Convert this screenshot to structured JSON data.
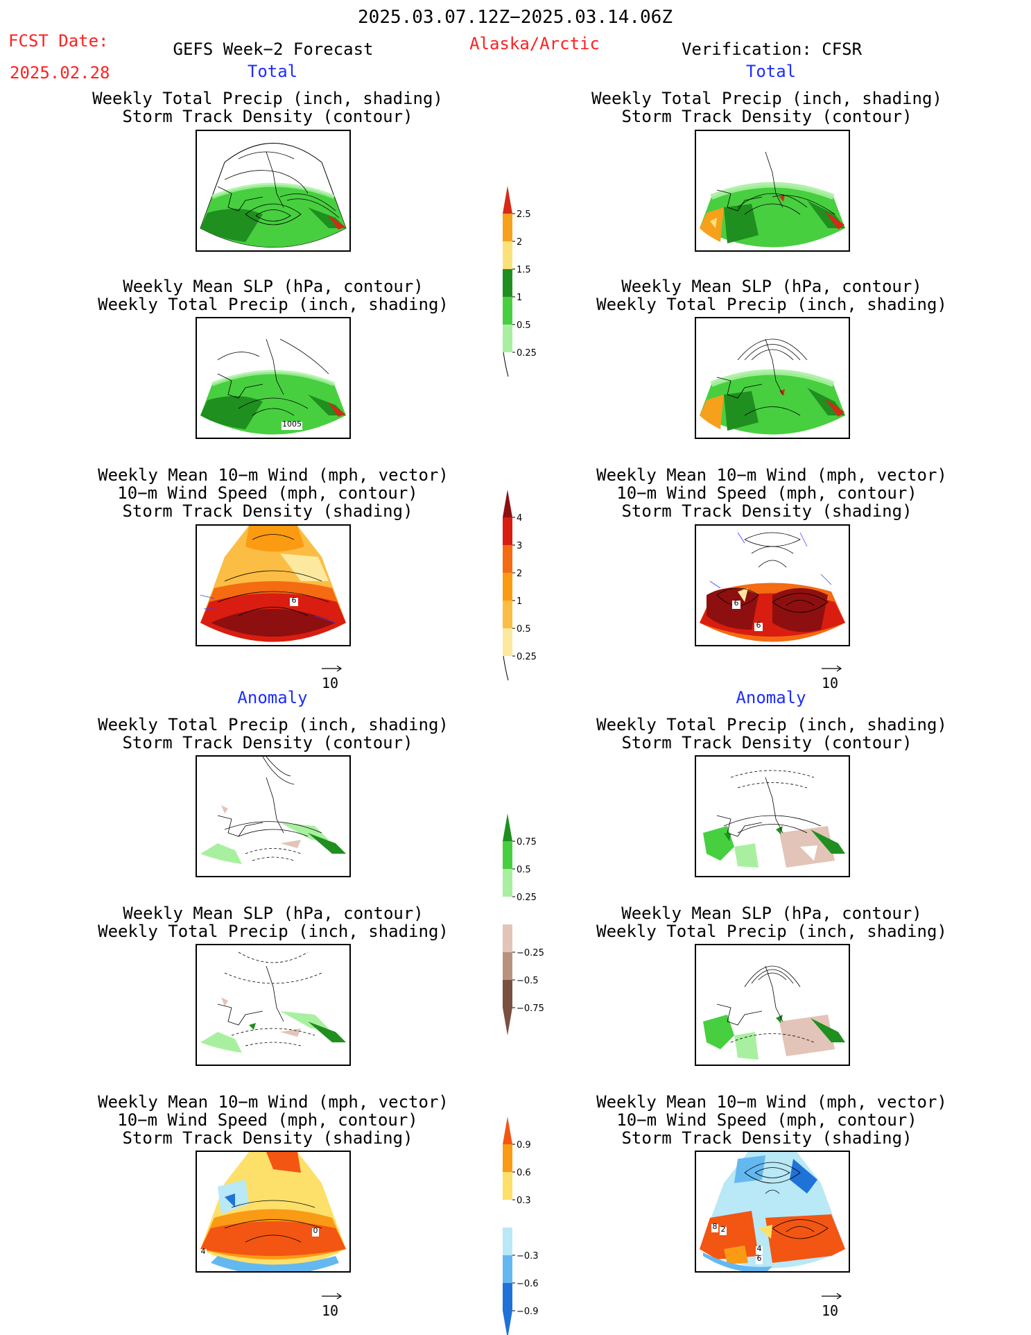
{
  "header": {
    "date_range": "2025.03.07.12Z−2025.03.14.06Z",
    "fcst_label": "FCST Date:",
    "fcst_date": "2025.02.28",
    "forecast_title": "GEFS Week−2 Forecast",
    "region": "Alaska/Arctic",
    "verification": "Verification: CFSR"
  },
  "sections": {
    "total": "Total",
    "anomaly": "Anomaly"
  },
  "titles": {
    "precip_track": [
      "Weekly Total Precip (inch, shading)",
      "Storm Track Density (contour)"
    ],
    "slp_precip": [
      "Weekly Mean SLP (hPa, contour)",
      "Weekly Total Precip (inch, shading)"
    ],
    "wind_track": [
      "Weekly Mean 10−m Wind (mph, vector)",
      "10−m Wind Speed (mph, contour)",
      "Storm Track Density (shading)"
    ]
  },
  "panel_labels": {
    "slp_total_left": "1005",
    "wind_total_left": "6",
    "wind_total_right_a": "6",
    "wind_total_right_b": "6",
    "wind_anom_left_a": "0",
    "wind_anom_left_b": "4",
    "wind_anom_right_a": "8",
    "wind_anom_right_b": "2",
    "wind_anom_right_c": "4",
    "wind_anom_right_d": "6"
  },
  "vector_reference": "10",
  "colorbars": {
    "precip_total": {
      "ticks": [
        "2.5",
        "2",
        "1.5",
        "1",
        "0.5",
        "0.25"
      ],
      "colors": [
        "#d42a16",
        "#f7a01b",
        "#fbe17a",
        "#1f8f1f",
        "#47cf3f",
        "#a8f0a0"
      ]
    },
    "track_total": {
      "ticks": [
        "4",
        "3",
        "2",
        "1",
        "0.5",
        "0.25"
      ],
      "colors": [
        "#8e0f0f",
        "#d91d10",
        "#f46b12",
        "#fb9b12",
        "#fbbd43",
        "#fde8a0"
      ]
    },
    "precip_anom": {
      "ticks": [
        "0.75",
        "0.5",
        "0.25",
        "−0.25",
        "−0.5",
        "−0.75"
      ],
      "colors": [
        "#1f8f1f",
        "#47cf3f",
        "#a8f0a0",
        "#ffffff",
        "#e3c4b8",
        "#b8917f",
        "#7a5040"
      ]
    },
    "track_anom": {
      "ticks": [
        "0.9",
        "0.6",
        "0.3",
        "−0.3",
        "−0.6",
        "−0.9"
      ],
      "colors": [
        "#f35513",
        "#fb9a15",
        "#fde06a",
        "#ffffff",
        "#b9e8f6",
        "#64b8f0",
        "#1f72d8"
      ]
    }
  }
}
